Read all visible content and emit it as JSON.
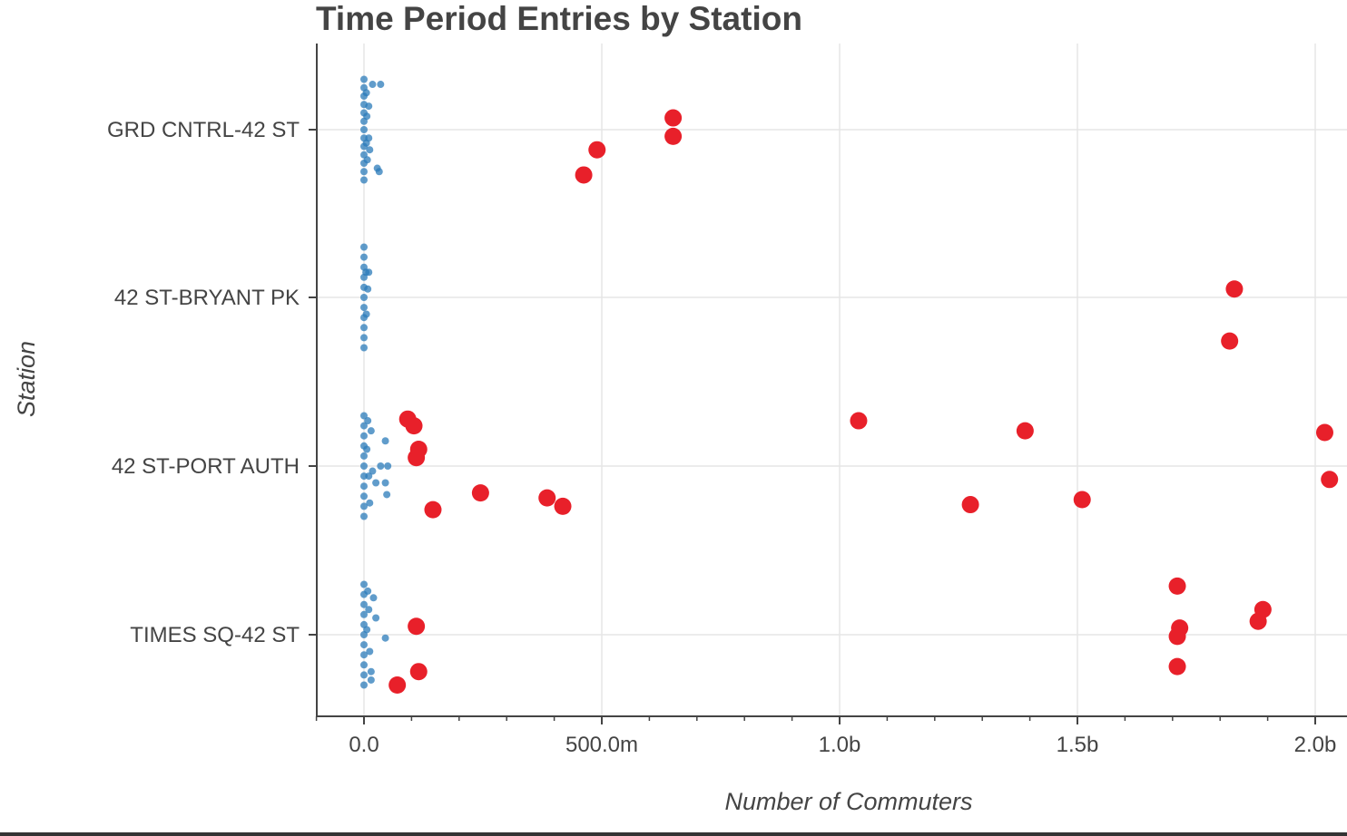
{
  "chart_data": {
    "type": "scatter",
    "title": "Time Period Entries by Station",
    "xlabel": "Number of Commuters",
    "ylabel": "Station",
    "categories": [
      "GRD CNTRL-42 ST",
      "42 ST-BRYANT PK",
      "42 ST-PORT AUTH",
      "TIMES SQ-42 ST"
    ],
    "xlim": [
      -100000000,
      2070000000
    ],
    "x_ticks": [
      {
        "value": 0,
        "label": "0.0"
      },
      {
        "value": 500000000,
        "label": "500.0m"
      },
      {
        "value": 1000000000,
        "label": "1.0b"
      },
      {
        "value": 1500000000,
        "label": "1.5b"
      },
      {
        "value": 2000000000,
        "label": "2.0b"
      }
    ],
    "x_minor_step": 100000000,
    "grid": true,
    "colors": {
      "normal": "#2b7bba",
      "outlier": "#e8202a",
      "grid": "#e5e5e5",
      "axis": "#444444"
    },
    "series": [
      {
        "style": "normal",
        "points": [
          {
            "x": 0,
            "y": "GRD CNTRL-42 ST",
            "jitter": -0.3
          },
          {
            "x": 0,
            "y": "GRD CNTRL-42 ST",
            "jitter": -0.25
          },
          {
            "x": 0,
            "y": "GRD CNTRL-42 ST",
            "jitter": -0.2
          },
          {
            "x": 0,
            "y": "GRD CNTRL-42 ST",
            "jitter": -0.15
          },
          {
            "x": 0,
            "y": "GRD CNTRL-42 ST",
            "jitter": -0.1
          },
          {
            "x": 0,
            "y": "GRD CNTRL-42 ST",
            "jitter": -0.05
          },
          {
            "x": 0,
            "y": "GRD CNTRL-42 ST",
            "jitter": 0.0
          },
          {
            "x": 0,
            "y": "GRD CNTRL-42 ST",
            "jitter": 0.05
          },
          {
            "x": 0,
            "y": "GRD CNTRL-42 ST",
            "jitter": 0.1
          },
          {
            "x": 0,
            "y": "GRD CNTRL-42 ST",
            "jitter": 0.15
          },
          {
            "x": 0,
            "y": "GRD CNTRL-42 ST",
            "jitter": 0.2
          },
          {
            "x": 0,
            "y": "GRD CNTRL-42 ST",
            "jitter": 0.25
          },
          {
            "x": 0,
            "y": "GRD CNTRL-42 ST",
            "jitter": 0.3
          },
          {
            "x": 5000000,
            "y": "GRD CNTRL-42 ST",
            "jitter": -0.22
          },
          {
            "x": 6000000,
            "y": "GRD CNTRL-42 ST",
            "jitter": -0.08
          },
          {
            "x": 5000000,
            "y": "GRD CNTRL-42 ST",
            "jitter": 0.08
          },
          {
            "x": 7000000,
            "y": "GRD CNTRL-42 ST",
            "jitter": 0.18
          },
          {
            "x": 10000000,
            "y": "GRD CNTRL-42 ST",
            "jitter": -0.14
          },
          {
            "x": 10000000,
            "y": "GRD CNTRL-42 ST",
            "jitter": 0.05
          },
          {
            "x": 18000000,
            "y": "GRD CNTRL-42 ST",
            "jitter": -0.27
          },
          {
            "x": 12000000,
            "y": "GRD CNTRL-42 ST",
            "jitter": 0.12
          },
          {
            "x": 28000000,
            "y": "GRD CNTRL-42 ST",
            "jitter": 0.23
          },
          {
            "x": 35000000,
            "y": "GRD CNTRL-42 ST",
            "jitter": -0.27
          },
          {
            "x": 32000000,
            "y": "GRD CNTRL-42 ST",
            "jitter": 0.25
          },
          {
            "x": 0,
            "y": "42 ST-BRYANT PK",
            "jitter": -0.3
          },
          {
            "x": 0,
            "y": "42 ST-BRYANT PK",
            "jitter": -0.24
          },
          {
            "x": 0,
            "y": "42 ST-BRYANT PK",
            "jitter": -0.18
          },
          {
            "x": 0,
            "y": "42 ST-BRYANT PK",
            "jitter": -0.12
          },
          {
            "x": 0,
            "y": "42 ST-BRYANT PK",
            "jitter": -0.06
          },
          {
            "x": 0,
            "y": "42 ST-BRYANT PK",
            "jitter": 0.0
          },
          {
            "x": 0,
            "y": "42 ST-BRYANT PK",
            "jitter": 0.06
          },
          {
            "x": 0,
            "y": "42 ST-BRYANT PK",
            "jitter": 0.12
          },
          {
            "x": 0,
            "y": "42 ST-BRYANT PK",
            "jitter": 0.18
          },
          {
            "x": 0,
            "y": "42 ST-BRYANT PK",
            "jitter": 0.24
          },
          {
            "x": 0,
            "y": "42 ST-BRYANT PK",
            "jitter": 0.3
          },
          {
            "x": 4000000,
            "y": "42 ST-BRYANT PK",
            "jitter": -0.15
          },
          {
            "x": 5000000,
            "y": "42 ST-BRYANT PK",
            "jitter": 0.1
          },
          {
            "x": 8000000,
            "y": "42 ST-BRYANT PK",
            "jitter": -0.05
          },
          {
            "x": 10000000,
            "y": "42 ST-BRYANT PK",
            "jitter": -0.15
          },
          {
            "x": 0,
            "y": "42 ST-PORT AUTH",
            "jitter": -0.3
          },
          {
            "x": 0,
            "y": "42 ST-PORT AUTH",
            "jitter": -0.24
          },
          {
            "x": 0,
            "y": "42 ST-PORT AUTH",
            "jitter": -0.18
          },
          {
            "x": 0,
            "y": "42 ST-PORT AUTH",
            "jitter": -0.12
          },
          {
            "x": 0,
            "y": "42 ST-PORT AUTH",
            "jitter": -0.06
          },
          {
            "x": 0,
            "y": "42 ST-PORT AUTH",
            "jitter": 0.0
          },
          {
            "x": 0,
            "y": "42 ST-PORT AUTH",
            "jitter": 0.06
          },
          {
            "x": 0,
            "y": "42 ST-PORT AUTH",
            "jitter": 0.12
          },
          {
            "x": 0,
            "y": "42 ST-PORT AUTH",
            "jitter": 0.18
          },
          {
            "x": 0,
            "y": "42 ST-PORT AUTH",
            "jitter": 0.24
          },
          {
            "x": 0,
            "y": "42 ST-PORT AUTH",
            "jitter": 0.3
          },
          {
            "x": 8000000,
            "y": "42 ST-PORT AUTH",
            "jitter": -0.27
          },
          {
            "x": 6000000,
            "y": "42 ST-PORT AUTH",
            "jitter": -0.1
          },
          {
            "x": 10000000,
            "y": "42 ST-PORT AUTH",
            "jitter": 0.06
          },
          {
            "x": 15000000,
            "y": "42 ST-PORT AUTH",
            "jitter": -0.21
          },
          {
            "x": 18000000,
            "y": "42 ST-PORT AUTH",
            "jitter": 0.03
          },
          {
            "x": 12000000,
            "y": "42 ST-PORT AUTH",
            "jitter": 0.22
          },
          {
            "x": 25000000,
            "y": "42 ST-PORT AUTH",
            "jitter": 0.1
          },
          {
            "x": 35000000,
            "y": "42 ST-PORT AUTH",
            "jitter": 0.0
          },
          {
            "x": 45000000,
            "y": "42 ST-PORT AUTH",
            "jitter": -0.15
          },
          {
            "x": 45000000,
            "y": "42 ST-PORT AUTH",
            "jitter": 0.1
          },
          {
            "x": 50000000,
            "y": "42 ST-PORT AUTH",
            "jitter": 0.0
          },
          {
            "x": 48000000,
            "y": "42 ST-PORT AUTH",
            "jitter": 0.17
          },
          {
            "x": 0,
            "y": "TIMES SQ-42 ST",
            "jitter": -0.3
          },
          {
            "x": 0,
            "y": "TIMES SQ-42 ST",
            "jitter": -0.24
          },
          {
            "x": 0,
            "y": "TIMES SQ-42 ST",
            "jitter": -0.18
          },
          {
            "x": 0,
            "y": "TIMES SQ-42 ST",
            "jitter": -0.12
          },
          {
            "x": 0,
            "y": "TIMES SQ-42 ST",
            "jitter": -0.06
          },
          {
            "x": 0,
            "y": "TIMES SQ-42 ST",
            "jitter": 0.0
          },
          {
            "x": 0,
            "y": "TIMES SQ-42 ST",
            "jitter": 0.06
          },
          {
            "x": 0,
            "y": "TIMES SQ-42 ST",
            "jitter": 0.12
          },
          {
            "x": 0,
            "y": "TIMES SQ-42 ST",
            "jitter": 0.18
          },
          {
            "x": 0,
            "y": "TIMES SQ-42 ST",
            "jitter": 0.24
          },
          {
            "x": 0,
            "y": "TIMES SQ-42 ST",
            "jitter": 0.3
          },
          {
            "x": 8000000,
            "y": "TIMES SQ-42 ST",
            "jitter": -0.26
          },
          {
            "x": 10000000,
            "y": "TIMES SQ-42 ST",
            "jitter": -0.15
          },
          {
            "x": 6000000,
            "y": "TIMES SQ-42 ST",
            "jitter": -0.03
          },
          {
            "x": 12000000,
            "y": "TIMES SQ-42 ST",
            "jitter": 0.1
          },
          {
            "x": 15000000,
            "y": "TIMES SQ-42 ST",
            "jitter": 0.22
          },
          {
            "x": 20000000,
            "y": "TIMES SQ-42 ST",
            "jitter": -0.22
          },
          {
            "x": 25000000,
            "y": "TIMES SQ-42 ST",
            "jitter": -0.1
          },
          {
            "x": 45000000,
            "y": "TIMES SQ-42 ST",
            "jitter": 0.02
          },
          {
            "x": 15000000,
            "y": "TIMES SQ-42 ST",
            "jitter": 0.27
          }
        ]
      },
      {
        "style": "outlier",
        "points": [
          {
            "x": 650000000,
            "y": "GRD CNTRL-42 ST",
            "jitter": -0.07
          },
          {
            "x": 650000000,
            "y": "GRD CNTRL-42 ST",
            "jitter": 0.04
          },
          {
            "x": 490000000,
            "y": "GRD CNTRL-42 ST",
            "jitter": 0.12
          },
          {
            "x": 462000000,
            "y": "GRD CNTRL-42 ST",
            "jitter": 0.27
          },
          {
            "x": 1830000000,
            "y": "42 ST-BRYANT PK",
            "jitter": -0.05
          },
          {
            "x": 1820000000,
            "y": "42 ST-BRYANT PK",
            "jitter": 0.26
          },
          {
            "x": 92000000,
            "y": "42 ST-PORT AUTH",
            "jitter": -0.28
          },
          {
            "x": 105000000,
            "y": "42 ST-PORT AUTH",
            "jitter": -0.24
          },
          {
            "x": 115000000,
            "y": "42 ST-PORT AUTH",
            "jitter": -0.1
          },
          {
            "x": 110000000,
            "y": "42 ST-PORT AUTH",
            "jitter": -0.05
          },
          {
            "x": 145000000,
            "y": "42 ST-PORT AUTH",
            "jitter": 0.26
          },
          {
            "x": 245000000,
            "y": "42 ST-PORT AUTH",
            "jitter": 0.16
          },
          {
            "x": 385000000,
            "y": "42 ST-PORT AUTH",
            "jitter": 0.19
          },
          {
            "x": 418000000,
            "y": "42 ST-PORT AUTH",
            "jitter": 0.24
          },
          {
            "x": 1040000000,
            "y": "42 ST-PORT AUTH",
            "jitter": -0.27
          },
          {
            "x": 1390000000,
            "y": "42 ST-PORT AUTH",
            "jitter": -0.21
          },
          {
            "x": 1275000000,
            "y": "42 ST-PORT AUTH",
            "jitter": 0.23
          },
          {
            "x": 1510000000,
            "y": "42 ST-PORT AUTH",
            "jitter": 0.2
          },
          {
            "x": 2020000000,
            "y": "42 ST-PORT AUTH",
            "jitter": -0.2
          },
          {
            "x": 2030000000,
            "y": "42 ST-PORT AUTH",
            "jitter": 0.08
          },
          {
            "x": 110000000,
            "y": "TIMES SQ-42 ST",
            "jitter": -0.05
          },
          {
            "x": 115000000,
            "y": "TIMES SQ-42 ST",
            "jitter": 0.22
          },
          {
            "x": 70000000,
            "y": "TIMES SQ-42 ST",
            "jitter": 0.3
          },
          {
            "x": 1710000000,
            "y": "TIMES SQ-42 ST",
            "jitter": -0.29
          },
          {
            "x": 1890000000,
            "y": "TIMES SQ-42 ST",
            "jitter": -0.15
          },
          {
            "x": 1880000000,
            "y": "TIMES SQ-42 ST",
            "jitter": -0.08
          },
          {
            "x": 1715000000,
            "y": "TIMES SQ-42 ST",
            "jitter": -0.04
          },
          {
            "x": 1710000000,
            "y": "TIMES SQ-42 ST",
            "jitter": 0.01
          },
          {
            "x": 1710000000,
            "y": "TIMES SQ-42 ST",
            "jitter": 0.19
          }
        ]
      }
    ]
  }
}
